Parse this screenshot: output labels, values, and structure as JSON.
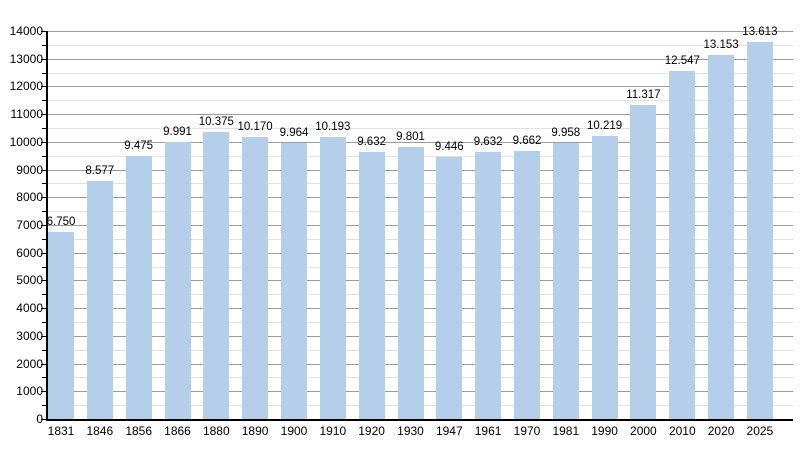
{
  "chart_data": {
    "type": "bar",
    "title": "",
    "xlabel": "",
    "ylabel": "",
    "categories": [
      "1831",
      "1846",
      "1856",
      "1866",
      "1880",
      "1890",
      "1900",
      "1910",
      "1920",
      "1930",
      "1947",
      "1961",
      "1970",
      "1981",
      "1990",
      "2000",
      "2010",
      "2020",
      "2025"
    ],
    "values": [
      6750,
      8577,
      9475,
      9991,
      10375,
      10170,
      9964,
      10193,
      9632,
      9801,
      9446,
      9632,
      9662,
      9958,
      10219,
      11317,
      12547,
      13153,
      13613
    ],
    "value_labels": [
      "6.750",
      "8.577",
      "9.475",
      "9.991",
      "10.375",
      "10.170",
      "9.964",
      "10.193",
      "9.632",
      "9.801",
      "9.446",
      "9.632",
      "9.662",
      "9.958",
      "10.219",
      "11.317",
      "12.547",
      "13.153",
      "13.613"
    ],
    "ylim": [
      0,
      14000
    ],
    "y_major_step": 1000,
    "y_minor_step": 500,
    "y_tick_labels": [
      "0",
      "1000",
      "2000",
      "3000",
      "4000",
      "5000",
      "6000",
      "7000",
      "8000",
      "9000",
      "10000",
      "11000",
      "12000",
      "13000",
      "14000"
    ],
    "grid": true,
    "legend_position": "none",
    "colors": {
      "bar": "#b5cee9",
      "major_grid": "#9c9c9c",
      "minor_grid": "#e2e2e2",
      "axis": "#000000",
      "text": "#000000",
      "background": "#ffffff"
    }
  }
}
